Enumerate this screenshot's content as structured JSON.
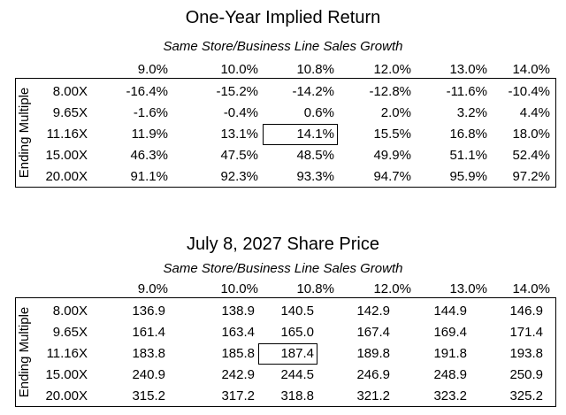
{
  "tables": [
    {
      "title": "One-Year Implied Return",
      "subtitle": "Same Store/Business Line Sales Growth",
      "row_axis_label": "Ending Multiple",
      "columns": [
        "9.0%",
        "10.0%",
        "10.8%",
        "12.0%",
        "13.0%",
        "14.0%"
      ],
      "rows": [
        {
          "label": "8.00X",
          "cells": [
            "-16.4%",
            "-15.2%",
            "-14.2%",
            "-12.8%",
            "-11.6%",
            "-10.4%"
          ]
        },
        {
          "label": "9.65X",
          "cells": [
            "-1.6%",
            "-0.4%",
            "0.6%",
            "2.0%",
            "3.2%",
            "4.4%"
          ]
        },
        {
          "label": "11.16X",
          "cells": [
            "11.9%",
            "13.1%",
            "14.1%",
            "15.5%",
            "16.8%",
            "18.0%"
          ]
        },
        {
          "label": "15.00X",
          "cells": [
            "46.3%",
            "47.5%",
            "48.5%",
            "49.9%",
            "51.1%",
            "52.4%"
          ]
        },
        {
          "label": "20.00X",
          "cells": [
            "91.1%",
            "92.3%",
            "93.3%",
            "94.7%",
            "95.9%",
            "97.2%"
          ]
        }
      ]
    },
    {
      "title": "July 8, 2027 Share Price",
      "subtitle": "Same Store/Business Line Sales Growth",
      "row_axis_label": "Ending Multiple",
      "columns": [
        "9.0%",
        "10.0%",
        "10.8%",
        "12.0%",
        "13.0%",
        "14.0%"
      ],
      "rows": [
        {
          "label": "8.00X",
          "cells": [
            "136.9",
            "138.9",
            "140.5",
            "142.9",
            "144.9",
            "146.9"
          ]
        },
        {
          "label": "9.65X",
          "cells": [
            "161.4",
            "163.4",
            "165.0",
            "167.4",
            "169.4",
            "171.4"
          ]
        },
        {
          "label": "11.16X",
          "cells": [
            "183.8",
            "185.8",
            "187.4",
            "189.8",
            "191.8",
            "193.8"
          ]
        },
        {
          "label": "15.00X",
          "cells": [
            "240.9",
            "242.9",
            "244.5",
            "246.9",
            "248.9",
            "250.9"
          ]
        },
        {
          "label": "20.00X",
          "cells": [
            "315.2",
            "317.2",
            "318.8",
            "321.2",
            "323.2",
            "325.2"
          ]
        }
      ]
    }
  ]
}
